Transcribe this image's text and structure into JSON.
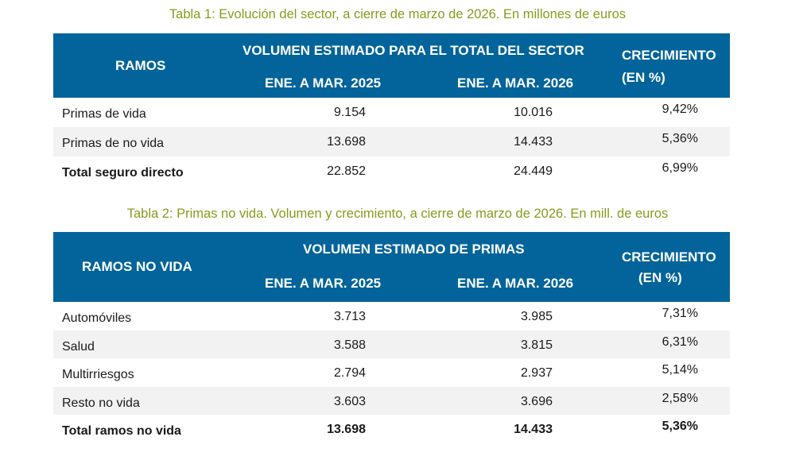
{
  "table1": {
    "title": "Tabla 1: Evolución del sector, a cierre de marzo de 2026. En millones de euros",
    "headers": {
      "ramos": "RAMOS",
      "volumen": "VOLUMEN ESTIMADO PARA EL TOTAL DEL SECTOR",
      "period1": "ENE. A MAR. 2025",
      "period2": "ENE. A MAR. 2026",
      "crecimiento": "CRECIMIENTO",
      "crecimiento_unit": "(EN %)"
    },
    "rows": [
      {
        "label": "Primas de vida",
        "v2025": "9.154",
        "v2026": "10.016",
        "growth": "9,42%",
        "bold": false
      },
      {
        "label": "Primas de no vida",
        "v2025": "13.698",
        "v2026": "14.433",
        "growth": "5,36%",
        "bold": false
      },
      {
        "label": "Total seguro directo",
        "v2025": "22.852",
        "v2026": "24.449",
        "growth": "6,99%",
        "bold": "label"
      }
    ]
  },
  "table2": {
    "title": "Tabla 2: Primas no vida. Volumen y crecimiento, a cierre de marzo de 2026. En mill. de euros",
    "headers": {
      "ramos": "RAMOS NO VIDA",
      "volumen": "VOLUMEN ESTIMADO DE PRIMAS",
      "period1": "ENE. A MAR. 2025",
      "period2": "ENE. A MAR. 2026",
      "crecimiento": "CRECIMIENTO",
      "crecimiento_unit": "(EN %)"
    },
    "rows": [
      {
        "label": "Automóviles",
        "v2025": "3.713",
        "v2026": "3.985",
        "growth": "7,31%",
        "bold": false
      },
      {
        "label": "Salud",
        "v2025": "3.588",
        "v2026": "3.815",
        "growth": "6,31%",
        "bold": false
      },
      {
        "label": "Multirriesgos",
        "v2025": "2.794",
        "v2026": "2.937",
        "growth": "5,14%",
        "bold": false
      },
      {
        "label": "Resto no vida",
        "v2025": "3.603",
        "v2026": "3.696",
        "growth": "2,58%",
        "bold": false
      },
      {
        "label": "Total ramos no vida",
        "v2025": "13.698",
        "v2026": "14.433",
        "growth": "5,36%",
        "bold": true
      }
    ]
  }
}
